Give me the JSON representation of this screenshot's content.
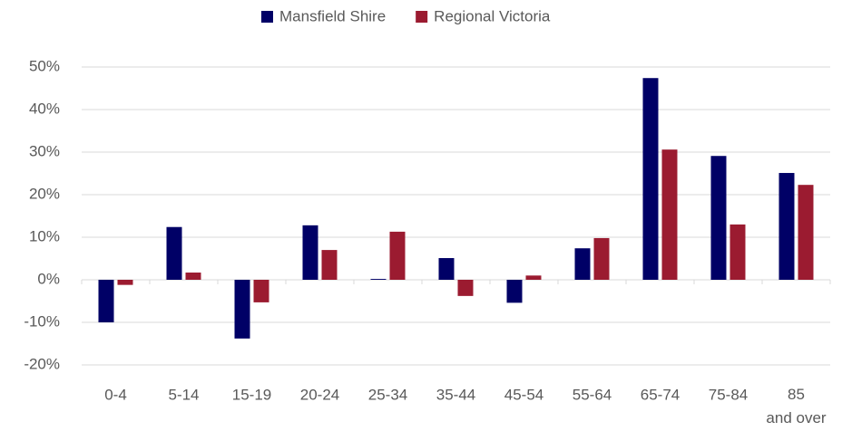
{
  "chart_data": {
    "type": "bar",
    "categories": [
      "0-4",
      "5-14",
      "15-19",
      "20-24",
      "25-34",
      "35-44",
      "45-54",
      "55-64",
      "65-74",
      "75-84",
      "85 and over"
    ],
    "series": [
      {
        "name": "Mansfield Shire",
        "color": "#000066",
        "values": [
          -10,
          12.4,
          -13.8,
          12.8,
          0.2,
          5.1,
          -5.4,
          7.4,
          47.4,
          29.1,
          25.1
        ]
      },
      {
        "name": "Regional Victoria",
        "color": "#9b1b30",
        "values": [
          -1.2,
          1.7,
          -5.3,
          7.0,
          11.3,
          -3.8,
          1.0,
          9.8,
          30.6,
          13.0,
          22.3
        ]
      }
    ],
    "ylim": [
      -20,
      50
    ],
    "yticks": [
      {
        "value": -20,
        "label": "-20%"
      },
      {
        "value": -10,
        "label": "-10%"
      },
      {
        "value": 0,
        "label": "0%"
      },
      {
        "value": 10,
        "label": "10%"
      },
      {
        "value": 20,
        "label": "20%"
      },
      {
        "value": 30,
        "label": "30%"
      },
      {
        "value": 40,
        "label": "40%"
      },
      {
        "value": 50,
        "label": "50%"
      }
    ],
    "grid": true,
    "legend": "top"
  }
}
